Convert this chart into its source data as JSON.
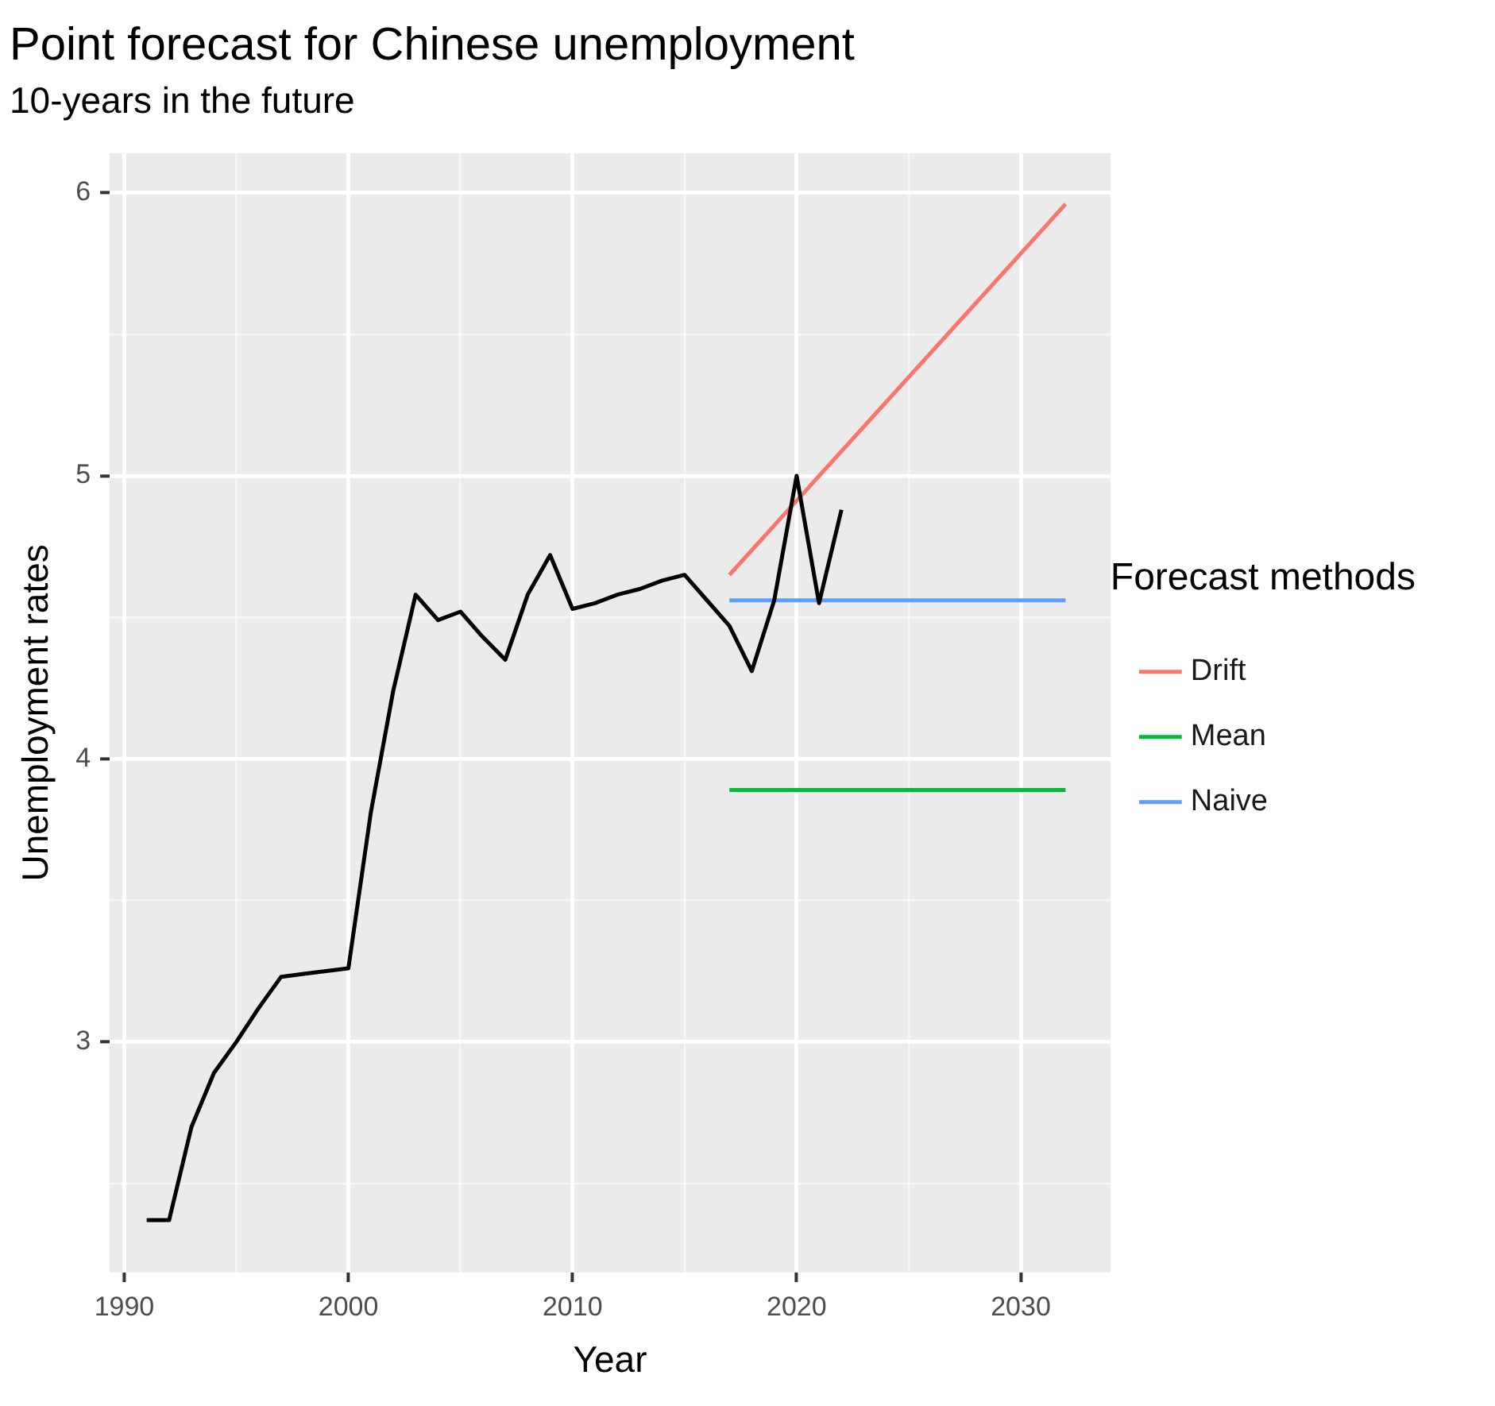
{
  "chart_data": {
    "type": "line",
    "title": "Point forecast for Chinese unemployment",
    "subtitle": "10-years in the future",
    "xlabel": "Year",
    "ylabel": "Unemployment rates",
    "legend_title": "Forecast methods",
    "legend": "right",
    "grid": true,
    "marker": "none",
    "line_style": "solid",
    "xlim": [
      1989.35,
      2034
    ],
    "ylim": [
      2.185,
      6.14
    ],
    "xticks": [
      1990,
      {
        "value": 1995,
        "label": null
      },
      2000,
      {
        "value": 2005,
        "label": null
      },
      2010,
      {
        "value": 2015,
        "label": null
      },
      2020,
      {
        "value": 2025,
        "label": null
      },
      2030
    ],
    "yticks": [
      {
        "value": 2.5,
        "label": null
      },
      3,
      {
        "value": 3.5,
        "label": null
      },
      4,
      {
        "value": 4.5,
        "label": null
      },
      5,
      {
        "value": 5.5,
        "label": null
      },
      6
    ],
    "series": [
      {
        "color": "#000000",
        "x": [
          1991,
          1992,
          1993,
          1994,
          1995,
          1996,
          1997,
          1998,
          1999,
          2000,
          2001,
          2002,
          2003,
          2004,
          2005,
          2006,
          2007,
          2008,
          2009,
          2010,
          2011,
          2012,
          2013,
          2014,
          2015,
          2016,
          2017,
          2018,
          2019,
          2020,
          2021,
          2022
        ],
        "values": [
          2.37,
          2.37,
          2.7,
          2.89,
          3.0,
          3.12,
          3.23,
          3.24,
          3.25,
          3.26,
          3.81,
          4.24,
          4.58,
          4.49,
          4.52,
          4.43,
          4.35,
          4.58,
          4.72,
          4.53,
          4.55,
          4.58,
          4.6,
          4.63,
          4.65,
          4.56,
          4.47,
          4.31,
          4.56,
          5.0,
          4.55,
          4.88
        ]
      },
      {
        "name": "Drift",
        "color": "#f8766d",
        "x": [
          2017,
          2032
        ],
        "values": [
          4.65,
          5.96
        ]
      },
      {
        "name": "Mean",
        "color": "#00ba38",
        "x": [
          2017,
          2032
        ],
        "values": [
          3.89,
          3.89
        ]
      },
      {
        "name": "Naive",
        "color": "#619cff",
        "x": [
          2017,
          2032
        ],
        "values": [
          4.56,
          4.56
        ]
      }
    ]
  }
}
